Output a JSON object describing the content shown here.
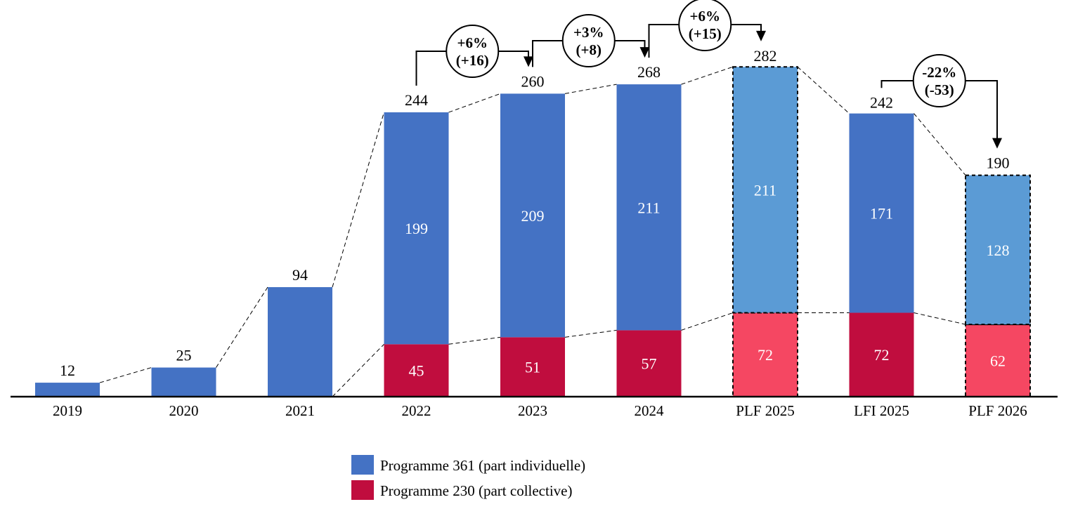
{
  "chart_data": {
    "type": "bar",
    "stacked": true,
    "title": "",
    "xlabel": "",
    "ylabel": "",
    "ylim": [
      0,
      290
    ],
    "grid": false,
    "categories": [
      "2019",
      "2020",
      "2021",
      "2022",
      "2023",
      "2024",
      "PLF 2025",
      "LFI 2025",
      "PLF 2026"
    ],
    "projected": [
      false,
      false,
      false,
      false,
      false,
      false,
      true,
      false,
      true
    ],
    "series": [
      {
        "name": "Programme 230 (part collective)",
        "color": "#C00D3E",
        "projected_color": "#F54762",
        "values": [
          0,
          0,
          0,
          45,
          51,
          57,
          72,
          72,
          62
        ],
        "labels": [
          "",
          "",
          "",
          "45",
          "51",
          "57",
          "72",
          "72",
          "62"
        ]
      },
      {
        "name": "Programme 361 (part individuelle)",
        "color": "#4472C4",
        "projected_color": "#5B9BD5",
        "values": [
          12,
          25,
          94,
          199,
          209,
          211,
          211,
          171,
          128
        ],
        "labels": [
          "",
          "",
          "",
          "199",
          "209",
          "211",
          "211",
          "171",
          "128"
        ]
      }
    ],
    "totals": [
      12,
      25,
      94,
      244,
      260,
      268,
      282,
      242,
      190
    ],
    "total_labels": [
      "12",
      "25",
      "94",
      "244",
      "260",
      "268",
      "282",
      "242",
      "190"
    ],
    "annotations": [
      {
        "from": "2022",
        "to": "2023",
        "pct": "+6%",
        "delta": "(+16)"
      },
      {
        "from": "2023",
        "to": "2024",
        "pct": "+3%",
        "delta": "(+8)"
      },
      {
        "from": "2024",
        "to": "PLF 2025",
        "pct": "+6%",
        "delta": "(+15)"
      },
      {
        "from": "LFI 2025",
        "to": "PLF 2026",
        "pct": "-22%",
        "delta": "(-53)"
      }
    ],
    "legend": {
      "placement": "bottom-center",
      "items": [
        "Programme 361 (part individuelle)",
        "Programme 230 (part collective)"
      ]
    }
  }
}
